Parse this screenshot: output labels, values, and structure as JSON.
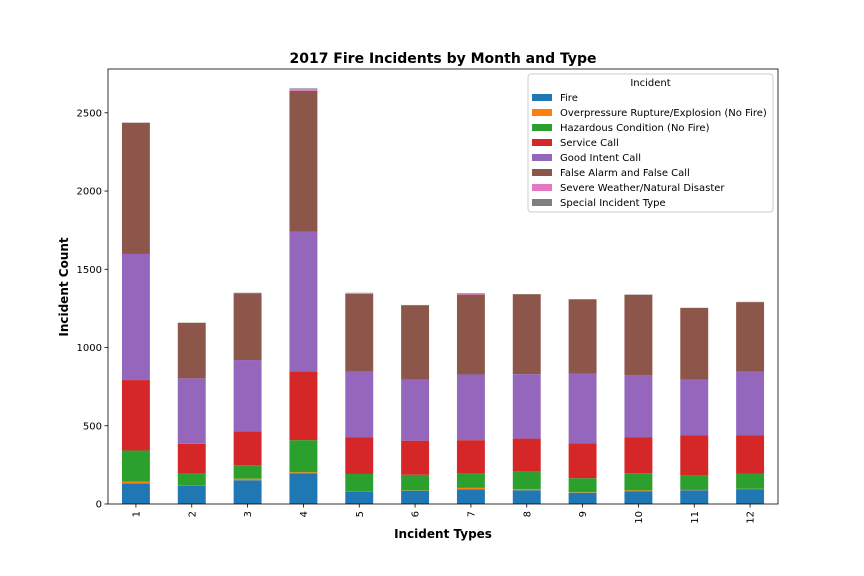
{
  "chart_data": {
    "type": "bar",
    "stacked": true,
    "title": "2017 Fire Incidents by Month and Type",
    "xlabel": "Incident Types",
    "ylabel": "Incident Count",
    "categories": [
      "1",
      "2",
      "3",
      "4",
      "5",
      "6",
      "7",
      "8",
      "9",
      "10",
      "11",
      "12"
    ],
    "ylim": [
      0,
      2780
    ],
    "yticks": [
      0,
      500,
      1000,
      1500,
      2000,
      2500
    ],
    "grid": false,
    "legend": {
      "title": "Incident",
      "placement": "top-right"
    },
    "series": [
      {
        "name": "Fire",
        "color": "#1f77b4",
        "values": [
          132,
          115,
          152,
          195,
          80,
          85,
          93,
          88,
          72,
          82,
          88,
          95
        ]
      },
      {
        "name": "Overpressure Rupture/Explosion (No Fire)",
        "color": "#ff7f0e",
        "values": [
          12,
          3,
          10,
          8,
          2,
          2,
          10,
          8,
          3,
          5,
          2,
          2
        ]
      },
      {
        "name": "Hazardous Condition (No Fire)",
        "color": "#2ca02c",
        "values": [
          198,
          80,
          85,
          205,
          110,
          100,
          95,
          110,
          90,
          110,
          95,
          98
        ]
      },
      {
        "name": "Service Call",
        "color": "#d62728",
        "values": [
          450,
          187,
          218,
          440,
          233,
          218,
          210,
          212,
          222,
          228,
          255,
          243
        ]
      },
      {
        "name": "Good Intent Call",
        "color": "#9467bd",
        "values": [
          806,
          418,
          455,
          893,
          420,
          390,
          420,
          412,
          445,
          397,
          355,
          407
        ]
      },
      {
        "name": "False Alarm and False Call",
        "color": "#8c564b",
        "values": [
          838,
          355,
          427,
          900,
          498,
          475,
          510,
          510,
          475,
          515,
          458,
          445
        ]
      },
      {
        "name": "Severe Weather/Natural Disaster",
        "color": "#e377c2",
        "values": [
          0,
          0,
          0,
          10,
          5,
          0,
          8,
          0,
          0,
          0,
          0,
          0
        ]
      },
      {
        "name": "Special Incident Type",
        "color": "#7f7f7f",
        "values": [
          2,
          1,
          3,
          5,
          2,
          2,
          2,
          2,
          2,
          2,
          1,
          2
        ]
      }
    ]
  }
}
